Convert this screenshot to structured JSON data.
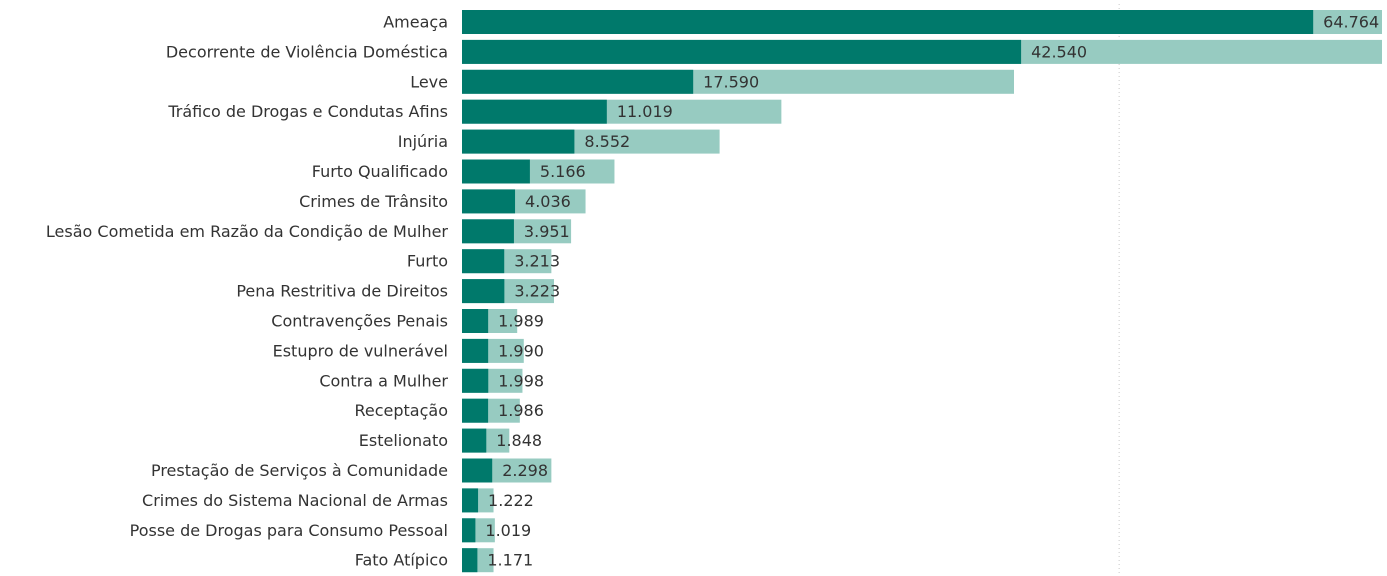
{
  "chart_data": {
    "type": "bar",
    "orientation": "horizontal",
    "categories": [
      "Ameaça",
      "Decorrente de Violência Doméstica",
      "Leve",
      "Tráfico de Drogas e Condutas Afins",
      "Injúria",
      "Furto Qualificado",
      "Crimes de Trânsito",
      "Lesão Cometida em Razão da Condição de Mulher",
      "Furto",
      "Pena Restritiva de Direitos",
      "Contravenções Penais",
      "Estupro de vulnerável",
      "Contra a Mulher",
      "Receptação",
      "Estelionato",
      "Prestação de Serviços à Comunidade",
      "Crimes do Sistema Nacional de Armas",
      "Posse de Drogas para Consumo Pessoal",
      "Fato Atípico"
    ],
    "series": [
      {
        "color": "#00796b",
        "values": [
          64764,
          42540,
          17590,
          11019,
          8552,
          5166,
          4036,
          3951,
          3213,
          3223,
          1989,
          1990,
          1998,
          1986,
          1848,
          2298,
          1222,
          1019,
          1171
        ]
      },
      {
        "color": "#97cbc1",
        "values": [
          70000,
          70000,
          42000,
          24300,
          19600,
          11600,
          9400,
          8300,
          6800,
          7000,
          4200,
          4700,
          4600,
          4400,
          3600,
          6800,
          2400,
          2500,
          2400
        ]
      }
    ],
    "value_labels": [
      "64.764",
      "42.540",
      "17.590",
      "11.019",
      "8.552",
      "5.166",
      "4.036",
      "3.951",
      "3.213",
      "3.223",
      "1.989",
      "1.990",
      "1.998",
      "1.986",
      "1.848",
      "2.298",
      "1.222",
      "1.019",
      "1.171"
    ],
    "xlim": [
      0,
      70000
    ],
    "reference_line": 50000,
    "grid": false,
    "legend": "none"
  }
}
